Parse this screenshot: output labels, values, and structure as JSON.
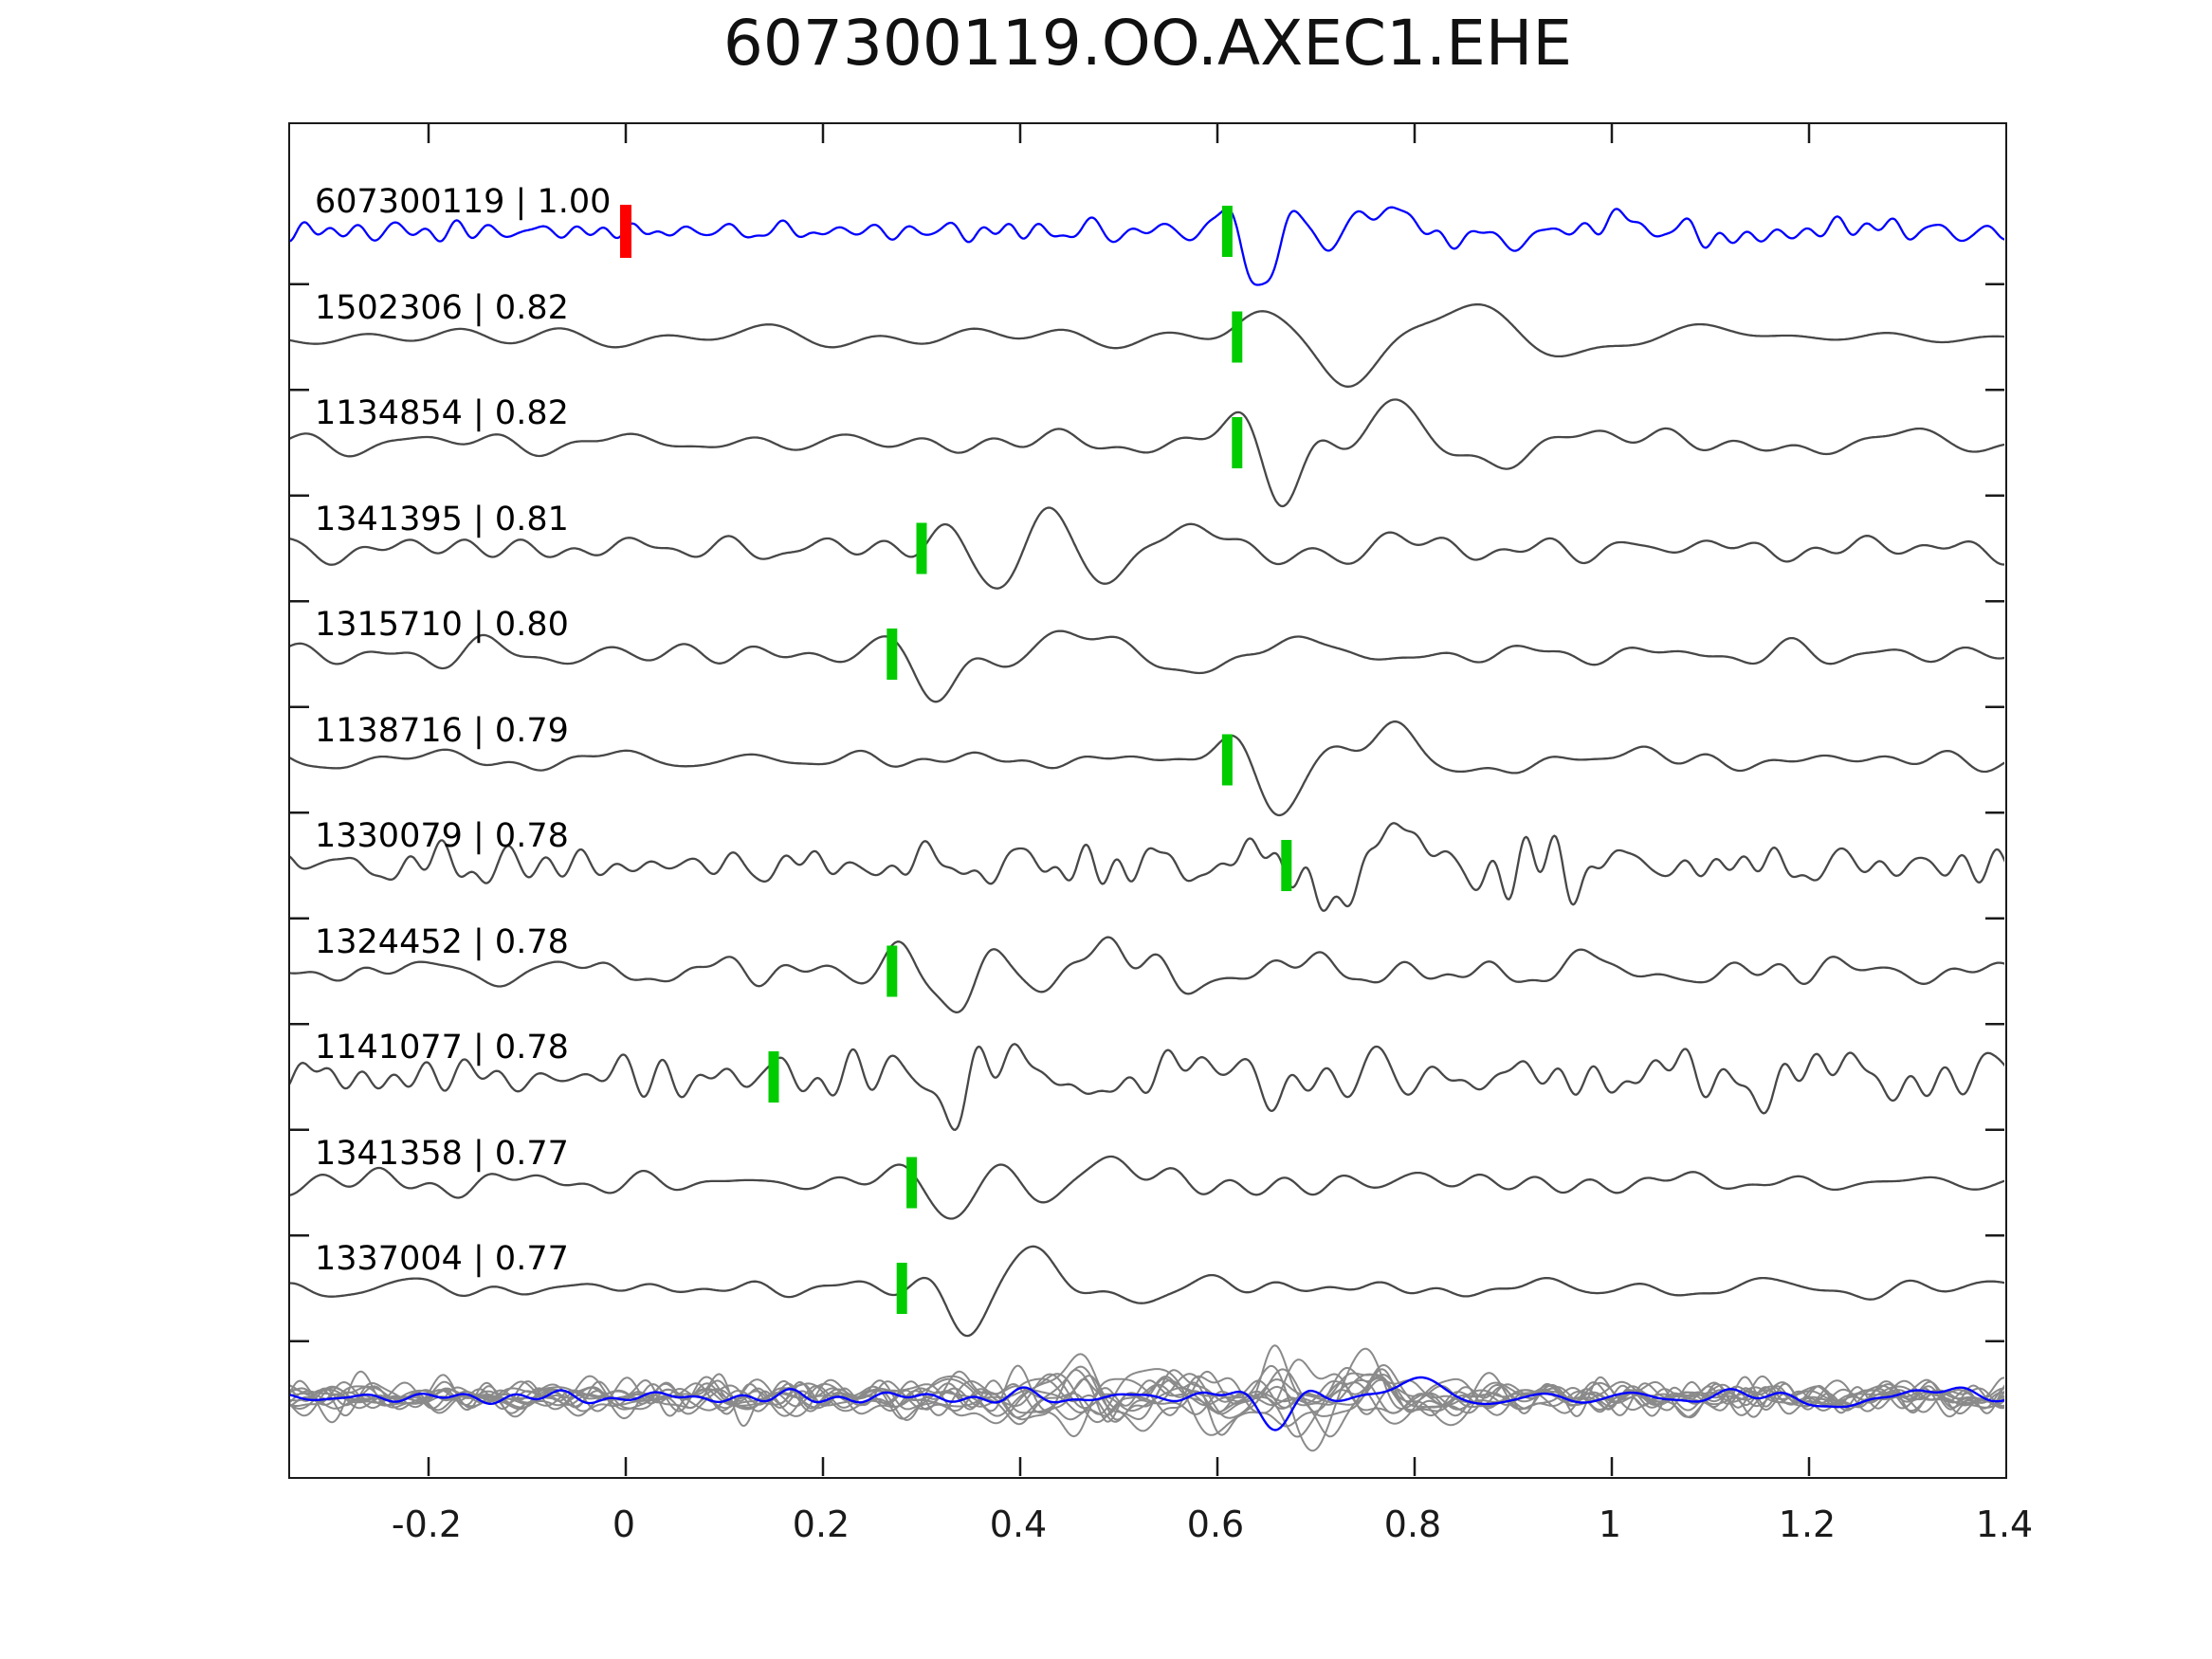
{
  "chart_data": {
    "type": "line",
    "title": "607300119.OO.AXEC1.EHE",
    "xlabel": "",
    "ylabel": "",
    "x_axis": {
      "min": -0.343,
      "max": 1.4,
      "ticks": [
        -0.2,
        0,
        0.2,
        0.4,
        0.6,
        0.8,
        1.0,
        1.2,
        1.4
      ],
      "tick_labels": [
        "-0.2",
        "0",
        "0.2",
        "0.4",
        "0.6",
        "0.8",
        "1",
        "1.2",
        "1.4"
      ],
      "grid": false
    },
    "colors": {
      "template_trace": "#0000ff",
      "member_trace": "#474747",
      "stack_member": "#8a8a8a",
      "pick_marker": "#00cc00",
      "reference_marker": "#ff0000",
      "axis": "#1a1a1a"
    },
    "reference_marker": {
      "trace_index": 0,
      "x": 0.0
    },
    "traces": [
      {
        "id": "607300119",
        "correlation": "1.00",
        "label": "607300119 | 1.00",
        "color": "#0000ff",
        "pick_x": 0.61,
        "render": {
          "seed": 11,
          "noise": 6,
          "f_lo": 12,
          "f_hi": 40,
          "bursts": [
            [
              0.645,
              0.026,
              11,
              64,
              -1.45
            ],
            [
              0.76,
              0.05,
              6.5,
              24,
              1.2
            ],
            [
              0.95,
              0.1,
              4.5,
              10,
              0
            ],
            [
              1.2,
              0.12,
              4,
              6,
              0
            ]
          ]
        }
      },
      {
        "id": "1502306",
        "correlation": "0.82",
        "label": "1502306 | 0.82",
        "color": "#474747",
        "pick_x": 0.62,
        "render": {
          "seed": 22,
          "noise": 4.5,
          "f_lo": 3,
          "f_hi": 12,
          "bursts": [
            [
              0.64,
              0.03,
              6,
              18,
              1.57
            ],
            [
              0.73,
              0.045,
              5.5,
              46,
              -1.57
            ],
            [
              0.86,
              0.07,
              4.5,
              30,
              1.57
            ],
            [
              1.05,
              0.12,
              3.5,
              12,
              0
            ]
          ]
        }
      },
      {
        "id": "1134854",
        "correlation": "0.82",
        "label": "1134854 | 0.82",
        "color": "#474747",
        "pick_x": 0.62,
        "render": {
          "seed": 33,
          "noise": 7,
          "f_lo": 4,
          "f_hi": 18,
          "bursts": [
            [
              0.665,
              0.035,
              9,
              52,
              -1.57
            ],
            [
              0.78,
              0.06,
              6.5,
              42,
              1.57
            ],
            [
              0.95,
              0.09,
              5,
              18,
              0
            ],
            [
              1.25,
              0.12,
              4.5,
              10,
              0
            ]
          ]
        }
      },
      {
        "id": "1341395",
        "correlation": "0.81",
        "label": "1341395 | 0.81",
        "color": "#474747",
        "pick_x": 0.3,
        "render": {
          "seed": 44,
          "noise": 7,
          "f_lo": 4,
          "f_hi": 20,
          "bursts": [
            [
              0.385,
              0.055,
              8.5,
              56,
              -1.0
            ],
            [
              0.53,
              0.07,
              6,
              30,
              0
            ],
            [
              0.75,
              0.15,
              5,
              12,
              0
            ]
          ]
        }
      },
      {
        "id": "1315710",
        "correlation": "0.80",
        "label": "1315710 | 0.80",
        "color": "#474747",
        "pick_x": 0.27,
        "render": {
          "seed": 55,
          "noise": 6,
          "f_lo": 4,
          "f_hi": 18,
          "bursts": [
            [
              0.315,
              0.032,
              7.5,
              50,
              -1.57
            ],
            [
              0.44,
              0.065,
              5.5,
              30,
              1.0
            ],
            [
              0.63,
              0.1,
              4.5,
              15,
              0
            ]
          ]
        }
      },
      {
        "id": "1138716",
        "correlation": "0.79",
        "label": "1138716 | 0.79",
        "color": "#474747",
        "pick_x": 0.61,
        "render": {
          "seed": 66,
          "noise": 5.5,
          "f_lo": 4,
          "f_hi": 20,
          "bursts": [
            [
              0.66,
              0.038,
              9,
              50,
              -1.57
            ],
            [
              0.77,
              0.06,
              6,
              32,
              1.2
            ],
            [
              0.97,
              0.12,
              4.5,
              10,
              0
            ]
          ]
        }
      },
      {
        "id": "1330079",
        "correlation": "0.78",
        "label": "1330079 | 0.78",
        "color": "#474747",
        "pick_x": 0.67,
        "render": {
          "seed": 77,
          "noise": 12,
          "f_lo": 8,
          "f_hi": 42,
          "bursts": [
            [
              0.705,
              0.045,
              8,
              40,
              -1.57
            ],
            [
              0.8,
              0.055,
              6,
              32,
              1.57
            ],
            [
              0.45,
              0.28,
              13,
              9,
              0
            ]
          ]
        }
      },
      {
        "id": "1324452",
        "correlation": "0.78",
        "label": "1324452 | 0.78",
        "color": "#474747",
        "pick_x": 0.27,
        "render": {
          "seed": 88,
          "noise": 8,
          "f_lo": 5,
          "f_hi": 24,
          "bursts": [
            [
              0.335,
              0.05,
              8,
              44,
              -1.2
            ],
            [
              0.47,
              0.07,
              5.5,
              26,
              0.8
            ],
            [
              0.9,
              0.25,
              4,
              7,
              0
            ]
          ]
        }
      },
      {
        "id": "1141077",
        "correlation": "0.78",
        "label": "1141077 | 0.78",
        "color": "#474747",
        "pick_x": 0.15,
        "render": {
          "seed": 99,
          "noise": 12,
          "f_lo": 6,
          "f_hi": 32,
          "bursts": [
            [
              0.33,
              0.06,
              7,
              36,
              -1.3
            ],
            [
              0.52,
              0.13,
              5,
              18,
              0
            ],
            [
              1.18,
              0.13,
              6,
              14,
              0
            ]
          ]
        }
      },
      {
        "id": "1341358",
        "correlation": "0.77",
        "label": "1341358 | 0.77",
        "color": "#474747",
        "pick_x": 0.29,
        "render": {
          "seed": 110,
          "noise": 6,
          "f_lo": 4,
          "f_hi": 20,
          "bursts": [
            [
              0.335,
              0.042,
              8.5,
              46,
              -1.4
            ],
            [
              0.47,
              0.06,
              5.5,
              26,
              0.9
            ],
            [
              0.75,
              0.2,
              4,
              7,
              0
            ]
          ]
        }
      },
      {
        "id": "1337004",
        "correlation": "0.77",
        "label": "1337004 | 0.77",
        "color": "#474747",
        "pick_x": 0.28,
        "render": {
          "seed": 121,
          "noise": 5.5,
          "f_lo": 4,
          "f_hi": 20,
          "bursts": [
            [
              0.345,
              0.03,
              8,
              44,
              -1.57
            ],
            [
              0.415,
              0.035,
              7,
              40,
              1.57
            ],
            [
              0.58,
              0.1,
              5,
              13,
              0
            ]
          ]
        }
      }
    ],
    "stack": {
      "members": 12,
      "member_render": {
        "seed_base": 200,
        "noise": 8,
        "f_lo": 5,
        "f_hi": 28,
        "burst_t0": [
          0.28,
          0.8
        ],
        "burst_w": [
          0.04,
          0.11
        ],
        "burst_f": [
          5,
          11
        ],
        "burst_amp": [
          14,
          40
        ]
      },
      "template_render": {
        "seed": 400,
        "noise": 4,
        "f_lo": 4,
        "f_hi": 22,
        "bursts": [
          [
            0.655,
            0.032,
            9,
            34,
            -1.57
          ],
          [
            0.8,
            0.05,
            5.5,
            20,
            1.57
          ],
          [
            1.28,
            0.09,
            5,
            11,
            0
          ]
        ]
      }
    }
  }
}
